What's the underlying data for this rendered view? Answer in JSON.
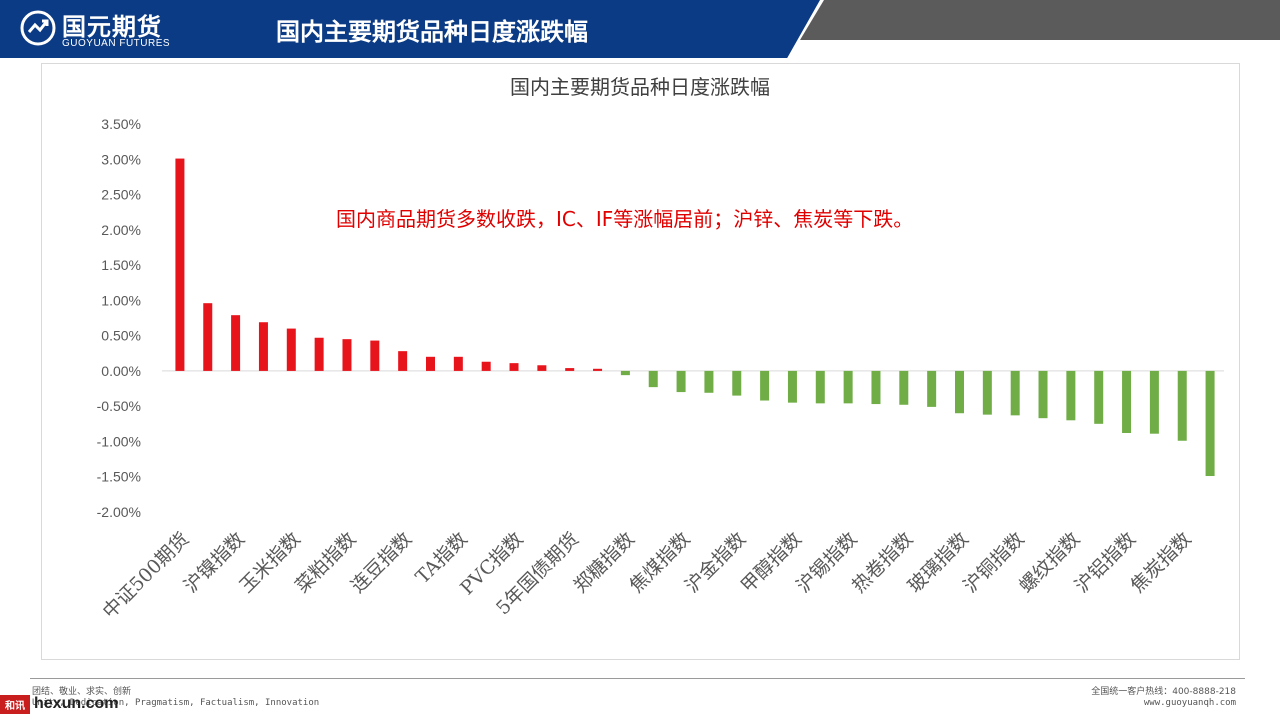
{
  "header": {
    "logo_cn": "国元期货",
    "logo_en": "GUOYUAN FUTURES",
    "title": "国内主要期货品种日度涨跌幅",
    "blue": "#0b3b84",
    "gray": "#5b5b5b"
  },
  "annotation": "国内商品期货多数收跌，IC、IF等涨幅居前；沪锌、焦炭等下跌。",
  "colors": {
    "positive": "#e8141c",
    "negative": "#70ad47"
  },
  "chart_data": {
    "type": "bar",
    "title": "国内主要期货品种日度涨跌幅",
    "xlabel": "",
    "ylabel": "",
    "ylim": [
      -2.0,
      3.5
    ],
    "yticks": [
      "3.50%",
      "3.00%",
      "2.50%",
      "2.00%",
      "1.50%",
      "1.00%",
      "0.50%",
      "0.00%",
      "-0.50%",
      "-1.00%",
      "-1.50%",
      "-2.00%"
    ],
    "tick_values": [
      3.5,
      3.0,
      2.5,
      2.0,
      1.5,
      1.0,
      0.5,
      0.0,
      -0.5,
      -1.0,
      -1.5,
      -2.0
    ],
    "grid": false,
    "legend": "none",
    "labeled_categories": [
      "中证500期货",
      "沪镍指数",
      "玉米指数",
      "菜粕指数",
      "连豆指数",
      "TA指数",
      "PVC指数",
      "5年国债期货",
      "郑糖指数",
      "焦煤指数",
      "沪金指数",
      "甲醇指数",
      "沪锡指数",
      "热卷指数",
      "玻璃指数",
      "沪铜指数",
      "螺纹指数",
      "沪铝指数",
      "焦炭指数"
    ],
    "values": [
      3.01,
      0.96,
      0.79,
      0.69,
      0.6,
      0.47,
      0.45,
      0.43,
      0.28,
      0.2,
      0.2,
      0.13,
      0.11,
      0.08,
      0.04,
      0.03,
      -0.06,
      -0.23,
      -0.3,
      -0.31,
      -0.35,
      -0.42,
      -0.45,
      -0.46,
      -0.46,
      -0.47,
      -0.48,
      -0.51,
      -0.6,
      -0.62,
      -0.63,
      -0.67,
      -0.7,
      -0.75,
      -0.88,
      -0.89,
      -0.99,
      -1.49
    ]
  },
  "footer": {
    "left1": "团结、敬业、求实、创新",
    "left2": "Unity, Dedication, Pragmatism, Factualism, Innovation",
    "right1": "全国统一客户热线：400-8888-218",
    "right2": "www.guoyuanqh.com",
    "watermark_badge": "和讯",
    "watermark_text": "hexun.com"
  }
}
